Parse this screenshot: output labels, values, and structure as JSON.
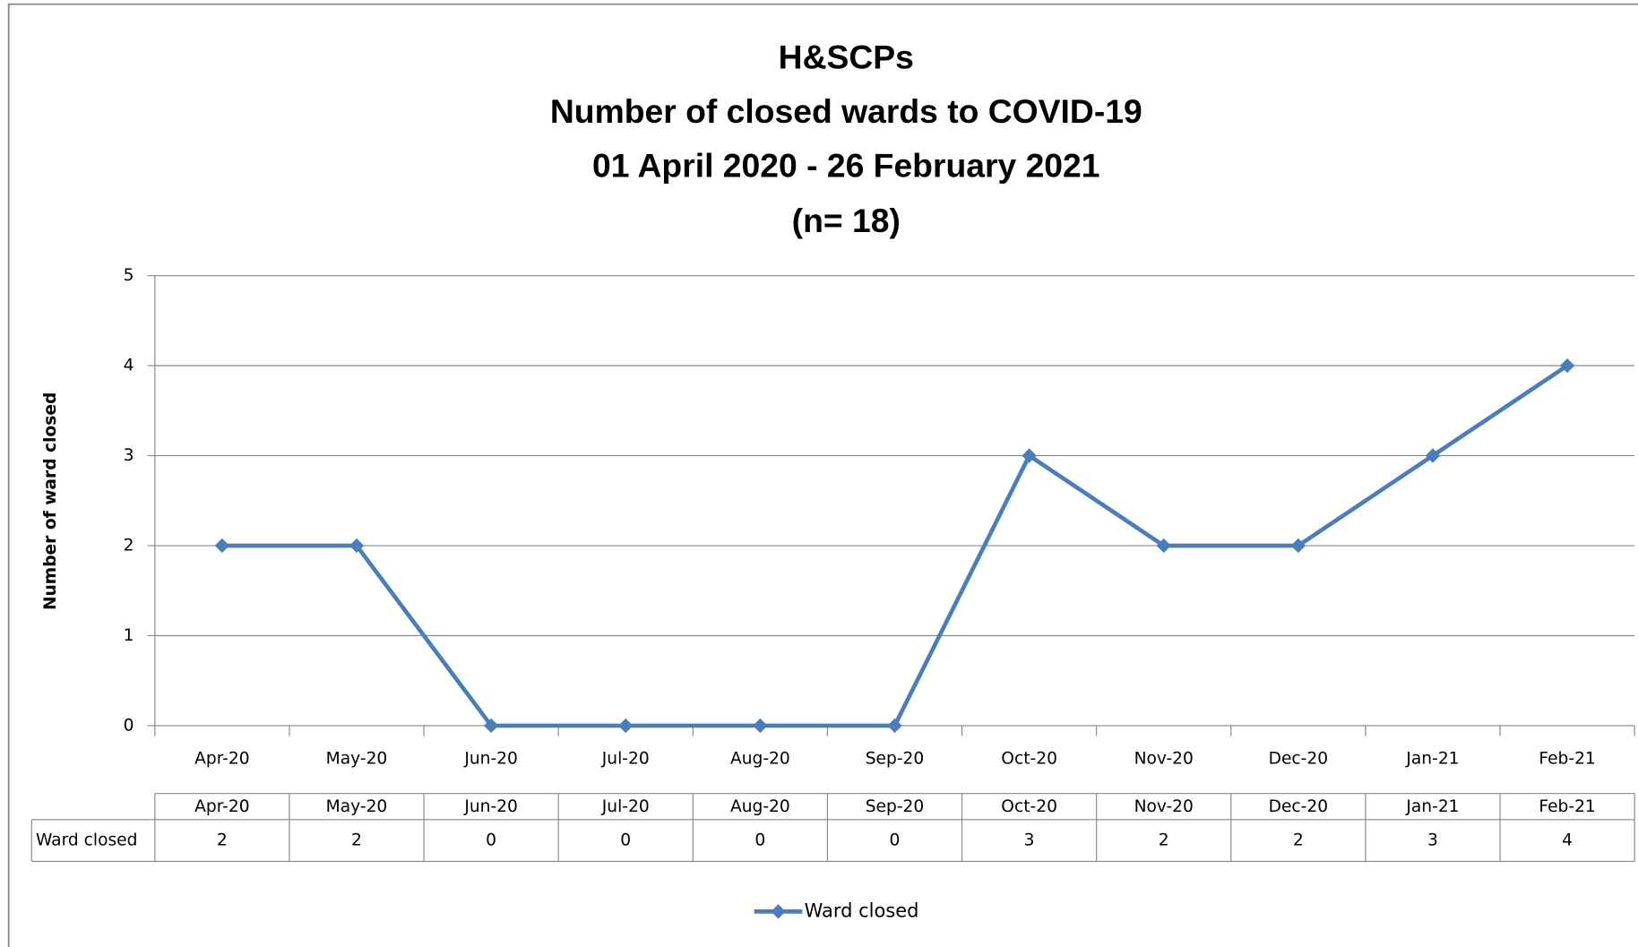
{
  "chart_data": {
    "type": "line",
    "title": [
      "H&SCPs",
      "Number of closed wards to COVID-19",
      "01 April 2020 - 26 February 2021",
      "(n= 18)"
    ],
    "y_label": "Number of ward closed",
    "categories": [
      "Apr-20",
      "May-20",
      "Jun-20",
      "Jul-20",
      "Aug-20",
      "Sep-20",
      "Oct-20",
      "Nov-20",
      "Dec-20",
      "Jan-21",
      "Feb-21"
    ],
    "series": [
      {
        "name": "Ward closed",
        "color": "#4a7ebb",
        "values": [
          2,
          2,
          0,
          0,
          0,
          0,
          3,
          2,
          2,
          3,
          4
        ]
      }
    ],
    "ylim": [
      0,
      5
    ],
    "yticks": [
      0,
      1,
      2,
      3,
      4,
      5
    ],
    "grid": true,
    "data_table": true,
    "legend": "bottom"
  }
}
